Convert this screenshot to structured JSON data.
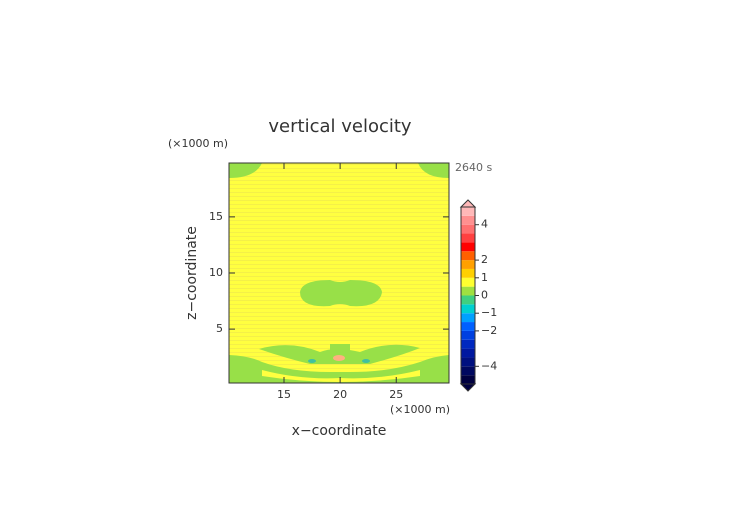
{
  "chart_data": {
    "type": "contour",
    "title": "vertical velocity",
    "x_label": "x−coordinate",
    "y_label": "z−coordinate",
    "x_unit": "(×1000 m)",
    "y_unit": "(×1000 m)",
    "time_label": "2640 s",
    "xlim": [
      10.1,
      29.7
    ],
    "ylim": [
      0.2,
      19.8
    ],
    "xticks": [
      15,
      20,
      25
    ],
    "yticks": [
      5,
      10,
      15
    ],
    "colorbar": {
      "levels": [
        -5,
        -4.5,
        -4,
        -3.5,
        -3,
        -2.5,
        -2,
        -1.5,
        -1,
        -0.5,
        0,
        0.5,
        1,
        1.5,
        2,
        2.5,
        3,
        3.5,
        4,
        4.5,
        5
      ],
      "colors": [
        "#000040",
        "#000860",
        "#001080",
        "#0018a0",
        "#0028c0",
        "#0040e0",
        "#0060ff",
        "#00a0ff",
        "#00d0d0",
        "#40d080",
        "#a0e040",
        "#ffff30",
        "#ffd000",
        "#ffa000",
        "#ff6000",
        "#ff0000",
        "#ff4040",
        "#ff7070",
        "#ff9090",
        "#ffb8b8"
      ],
      "ticks": [
        {
          "value": -4,
          "label": "−4"
        },
        {
          "value": -2,
          "label": "−2"
        },
        {
          "value": -1,
          "label": "−1"
        },
        0,
        1,
        2,
        4
      ]
    }
  }
}
